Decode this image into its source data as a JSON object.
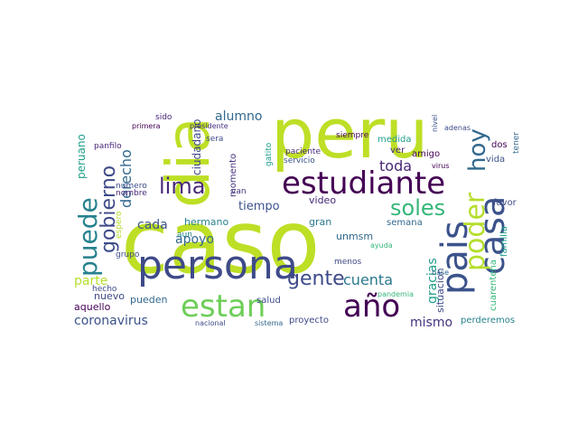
{
  "words": [
    {
      "text": "caso",
      "color": "#bddf26"
    },
    {
      "text": "peru",
      "color": "#bddf26"
    },
    {
      "text": "dia",
      "color": "#bddf26"
    },
    {
      "text": "persona",
      "color": "#3e4a89"
    },
    {
      "text": "estudiante",
      "color": "#440154"
    },
    {
      "text": "estan",
      "color": "#6ece58"
    },
    {
      "text": "año",
      "color": "#440154"
    },
    {
      "text": "pais",
      "color": "#3b528b"
    },
    {
      "text": "casa",
      "color": "#3b528b"
    },
    {
      "text": "lima",
      "color": "#482878"
    },
    {
      "text": "soles",
      "color": "#35b779"
    },
    {
      "text": "puede",
      "color": "#26828e"
    },
    {
      "text": "poder",
      "color": "#b5de2b"
    },
    {
      "text": "hoy",
      "color": "#31688e"
    },
    {
      "text": "gente",
      "color": "#3e4a89"
    },
    {
      "text": "gobierno",
      "color": "#3e4a89"
    },
    {
      "text": "derecho",
      "color": "#31688e"
    },
    {
      "text": "coronavirus",
      "color": "#3b528b"
    },
    {
      "text": "cuenta",
      "color": "#2a788e"
    },
    {
      "text": "gracias",
      "color": "#1f9e89"
    },
    {
      "text": "mismo",
      "color": "#46327e"
    },
    {
      "text": "toda",
      "color": "#482878"
    },
    {
      "text": "alumno",
      "color": "#31688e"
    },
    {
      "text": "cada",
      "color": "#3b528b"
    },
    {
      "text": "apoyo",
      "color": "#31688e"
    },
    {
      "text": "tiempo",
      "color": "#3b528b"
    },
    {
      "text": "parte",
      "color": "#b5de2b"
    },
    {
      "text": "video",
      "color": "#482878"
    },
    {
      "text": "gran",
      "color": "#2a788e"
    },
    {
      "text": "unmsm",
      "color": "#31688e"
    },
    {
      "text": "situacion",
      "color": "#3e4a89"
    },
    {
      "text": "semana",
      "color": "#31688e"
    },
    {
      "text": "peruano",
      "color": "#1f9e89"
    },
    {
      "text": "ciudadano",
      "color": "#3e4a89"
    },
    {
      "text": "momento",
      "color": "#46327e"
    },
    {
      "text": "nuevo",
      "color": "#3e4a89"
    },
    {
      "text": "pueden",
      "color": "#31688e"
    },
    {
      "text": "hermano",
      "color": "#26828e"
    },
    {
      "text": "proyecto",
      "color": "#3e4a89"
    },
    {
      "text": "aquello",
      "color": "#440154"
    },
    {
      "text": "perderemos",
      "color": "#26828e"
    },
    {
      "text": "cuarentena",
      "color": "#35b779"
    },
    {
      "text": "familia",
      "color": "#1f9e89"
    },
    {
      "text": "favor",
      "color": "#3e4a89"
    },
    {
      "text": "vida",
      "color": "#3b528b"
    },
    {
      "text": "dos",
      "color": "#440154"
    },
    {
      "text": "ver",
      "color": "#482878"
    },
    {
      "text": "amigo",
      "color": "#440154"
    },
    {
      "text": "medida",
      "color": "#1f9e89"
    },
    {
      "text": "siempre",
      "color": "#440154"
    },
    {
      "text": "servicio",
      "color": "#3b528b"
    },
    {
      "text": "paciente",
      "color": "#482878"
    },
    {
      "text": "menos",
      "color": "#3e4a89"
    },
    {
      "text": "salud",
      "color": "#3e4a89"
    },
    {
      "text": "aun",
      "color": "#26828e"
    },
    {
      "text": "van",
      "color": "#46327e"
    },
    {
      "text": "nombre",
      "color": "#482878"
    },
    {
      "text": "numero",
      "color": "#3e4a89"
    },
    {
      "text": "grupo",
      "color": "#3e4a89"
    },
    {
      "text": "espero",
      "color": "#b5de2b"
    },
    {
      "text": "sera",
      "color": "#3e4a89"
    },
    {
      "text": "sido",
      "color": "#482878"
    },
    {
      "text": "hecho",
      "color": "#3e4a89"
    },
    {
      "text": "panfilo",
      "color": "#482878"
    },
    {
      "text": "tener",
      "color": "#31688e"
    },
    {
      "text": "gatito",
      "color": "#1f9e89"
    },
    {
      "text": "nivel",
      "color": "#3b528b"
    },
    {
      "text": "sistema",
      "color": "#31688e"
    },
    {
      "text": "nacional",
      "color": "#3e4a89"
    },
    {
      "text": "ayuda",
      "color": "#35b779"
    },
    {
      "text": "pandemia",
      "color": "#35b779"
    },
    {
      "text": "adenas",
      "color": "#3e4a89"
    },
    {
      "text": "base",
      "color": "#31688e"
    },
    {
      "text": "virus",
      "color": "#440154"
    },
    {
      "text": "presidente",
      "color": "#46327e"
    },
    {
      "text": "primera",
      "color": "#440154"
    }
  ]
}
